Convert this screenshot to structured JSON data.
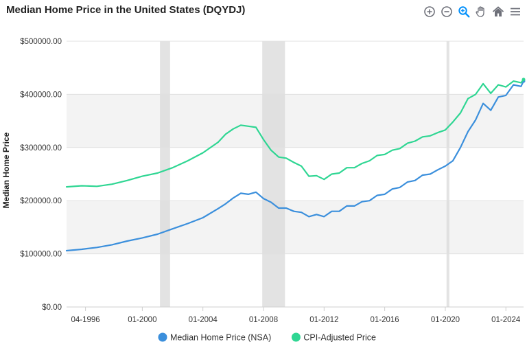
{
  "title": "Median Home Price in the United States (DQYDJ)",
  "toolbar": {
    "icons": [
      "zoom-in-icon",
      "zoom-out-icon",
      "zoom-select-icon",
      "pan-hand-icon",
      "home-reset-icon",
      "menu-icon"
    ],
    "accent": "#008ffb"
  },
  "chart_data": {
    "type": "line",
    "title": "Median Home Price in the United States (DQYDJ)",
    "xlabel": "",
    "ylabel": "Median Home Price",
    "ylim": [
      0,
      500000
    ],
    "xlim": [
      "1995-01",
      "2025-03"
    ],
    "y_ticks": [
      "$0.00",
      "$100000.00",
      "$200000.00",
      "$300000.00",
      "$400000.00",
      "$500000.00"
    ],
    "x_ticks": [
      "04-1996",
      "01-2000",
      "01-2004",
      "01-2008",
      "01-2012",
      "01-2016",
      "01-2020",
      "01-2024"
    ],
    "recession_bands": [
      [
        "2001-03",
        "2001-11"
      ],
      [
        "2007-12",
        "2009-06"
      ],
      [
        "2020-02",
        "2020-04"
      ]
    ],
    "grid": true,
    "legend_position": "bottom",
    "series": [
      {
        "name": "Median Home Price (NSA)",
        "color": "#3b8fdc",
        "points": [
          [
            "1995-01",
            106000
          ],
          [
            "1996-01",
            108500
          ],
          [
            "1997-01",
            112000
          ],
          [
            "1998-01",
            117000
          ],
          [
            "1999-01",
            124000
          ],
          [
            "2000-01",
            130000
          ],
          [
            "2001-01",
            137000
          ],
          [
            "2002-01",
            147000
          ],
          [
            "2003-01",
            157000
          ],
          [
            "2004-01",
            168000
          ],
          [
            "2005-01",
            185000
          ],
          [
            "2005-07",
            194000
          ],
          [
            "2006-01",
            205000
          ],
          [
            "2006-07",
            214000
          ],
          [
            "2007-01",
            212000
          ],
          [
            "2007-07",
            216000
          ],
          [
            "2008-01",
            204000
          ],
          [
            "2008-07",
            197000
          ],
          [
            "2009-01",
            186000
          ],
          [
            "2009-07",
            186000
          ],
          [
            "2010-01",
            180000
          ],
          [
            "2010-07",
            178000
          ],
          [
            "2011-01",
            170000
          ],
          [
            "2011-07",
            174000
          ],
          [
            "2012-01",
            170000
          ],
          [
            "2012-07",
            180000
          ],
          [
            "2013-01",
            180000
          ],
          [
            "2013-07",
            190000
          ],
          [
            "2014-01",
            190000
          ],
          [
            "2014-07",
            198000
          ],
          [
            "2015-01",
            200000
          ],
          [
            "2015-07",
            210000
          ],
          [
            "2016-01",
            212000
          ],
          [
            "2016-07",
            222000
          ],
          [
            "2017-01",
            225000
          ],
          [
            "2017-07",
            235000
          ],
          [
            "2018-01",
            238000
          ],
          [
            "2018-07",
            248000
          ],
          [
            "2019-01",
            250000
          ],
          [
            "2019-07",
            258000
          ],
          [
            "2020-01",
            265000
          ],
          [
            "2020-07",
            275000
          ],
          [
            "2021-01",
            300000
          ],
          [
            "2021-07",
            330000
          ],
          [
            "2022-01",
            352000
          ],
          [
            "2022-07",
            383000
          ],
          [
            "2023-01",
            370000
          ],
          [
            "2023-07",
            395000
          ],
          [
            "2024-01",
            398000
          ],
          [
            "2024-07",
            418000
          ],
          [
            "2025-01",
            415000
          ],
          [
            "2025-03",
            425000
          ]
        ]
      },
      {
        "name": "CPI-Adjusted Price",
        "color": "#2fd693",
        "points": [
          [
            "1995-01",
            226000
          ],
          [
            "1996-01",
            228000
          ],
          [
            "1997-01",
            227000
          ],
          [
            "1998-01",
            231000
          ],
          [
            "1999-01",
            238000
          ],
          [
            "2000-01",
            246000
          ],
          [
            "2001-01",
            252000
          ],
          [
            "2002-01",
            262000
          ],
          [
            "2003-01",
            275000
          ],
          [
            "2004-01",
            290000
          ],
          [
            "2005-01",
            310000
          ],
          [
            "2005-07",
            325000
          ],
          [
            "2006-01",
            335000
          ],
          [
            "2006-07",
            342000
          ],
          [
            "2007-01",
            340000
          ],
          [
            "2007-07",
            338000
          ],
          [
            "2008-01",
            315000
          ],
          [
            "2008-07",
            295000
          ],
          [
            "2009-01",
            282000
          ],
          [
            "2009-07",
            280000
          ],
          [
            "2010-01",
            272000
          ],
          [
            "2010-07",
            265000
          ],
          [
            "2011-01",
            246000
          ],
          [
            "2011-07",
            247000
          ],
          [
            "2012-01",
            240000
          ],
          [
            "2012-07",
            250000
          ],
          [
            "2013-01",
            252000
          ],
          [
            "2013-07",
            262000
          ],
          [
            "2014-01",
            262000
          ],
          [
            "2014-07",
            270000
          ],
          [
            "2015-01",
            275000
          ],
          [
            "2015-07",
            285000
          ],
          [
            "2016-01",
            287000
          ],
          [
            "2016-07",
            295000
          ],
          [
            "2017-01",
            298000
          ],
          [
            "2017-07",
            308000
          ],
          [
            "2018-01",
            312000
          ],
          [
            "2018-07",
            320000
          ],
          [
            "2019-01",
            322000
          ],
          [
            "2019-07",
            328000
          ],
          [
            "2020-01",
            333000
          ],
          [
            "2020-07",
            348000
          ],
          [
            "2021-01",
            365000
          ],
          [
            "2021-07",
            392000
          ],
          [
            "2022-01",
            400000
          ],
          [
            "2022-07",
            420000
          ],
          [
            "2023-01",
            402000
          ],
          [
            "2023-07",
            418000
          ],
          [
            "2024-01",
            414000
          ],
          [
            "2024-07",
            425000
          ],
          [
            "2025-01",
            422000
          ],
          [
            "2025-03",
            428000
          ]
        ]
      }
    ]
  }
}
